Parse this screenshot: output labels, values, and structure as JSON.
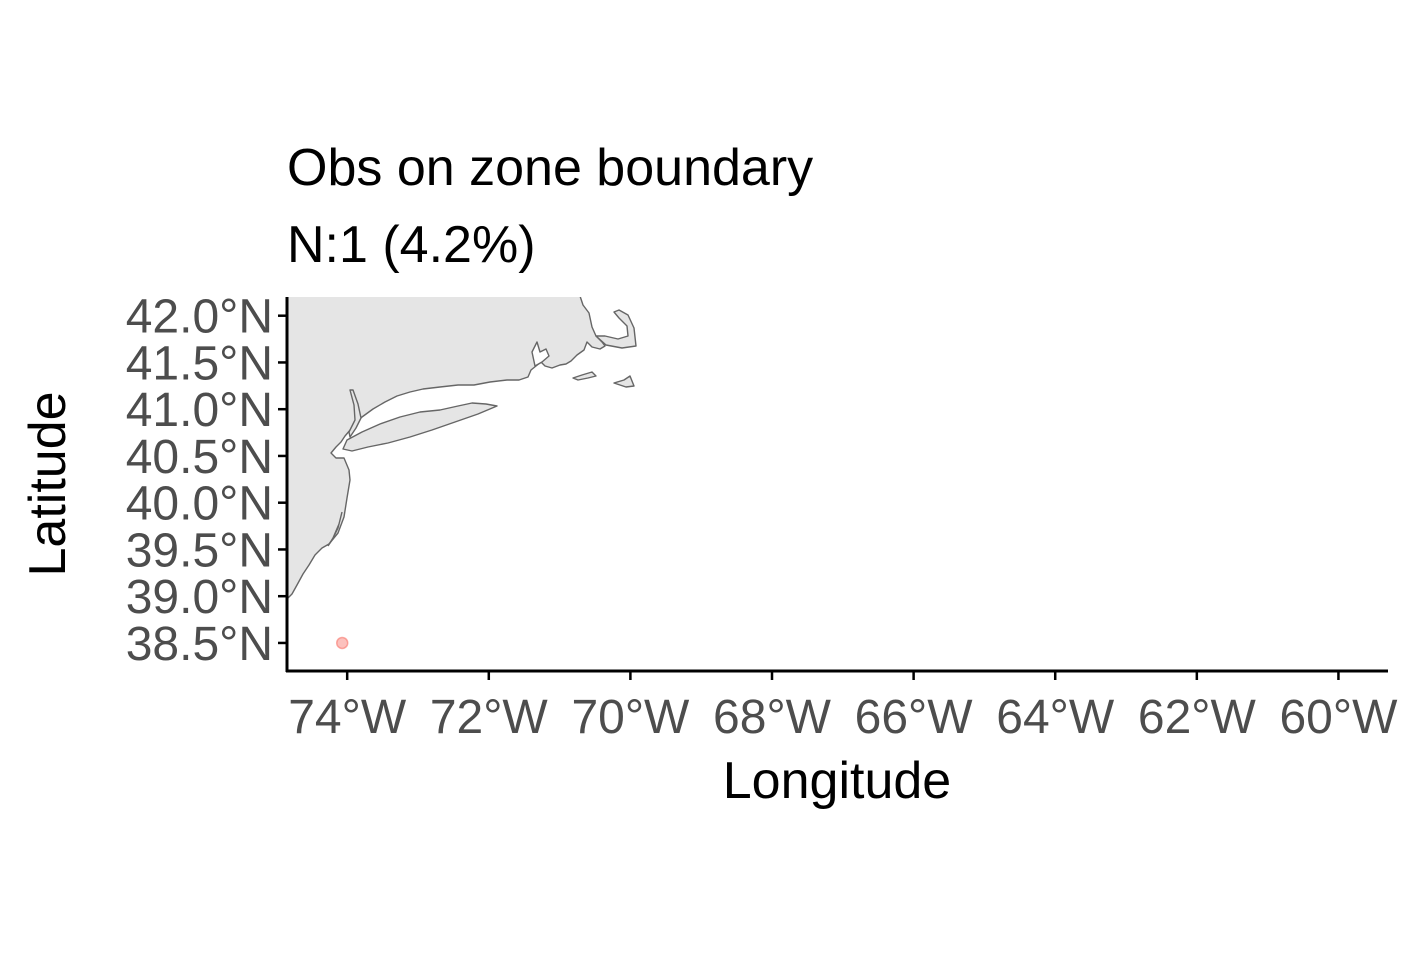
{
  "chart_data": {
    "type": "scatter",
    "title": "Obs on zone boundary",
    "subtitle": "N:1 (4.2%)",
    "xlabel": "Longitude",
    "ylabel": "Latitude",
    "x_ticks": [
      {
        "value": -74,
        "label": "74°W"
      },
      {
        "value": -72,
        "label": "72°W"
      },
      {
        "value": -70,
        "label": "70°W"
      },
      {
        "value": -68,
        "label": "68°W"
      },
      {
        "value": -66,
        "label": "66°W"
      },
      {
        "value": -64,
        "label": "64°W"
      },
      {
        "value": -62,
        "label": "62°W"
      },
      {
        "value": -60,
        "label": "60°W"
      }
    ],
    "y_ticks": [
      {
        "value": 42.0,
        "label": "42.0°N"
      },
      {
        "value": 41.5,
        "label": "41.5°N"
      },
      {
        "value": 41.0,
        "label": "41.0°N"
      },
      {
        "value": 40.5,
        "label": "40.5°N"
      },
      {
        "value": 40.0,
        "label": "40.0°N"
      },
      {
        "value": 39.5,
        "label": "39.5°N"
      },
      {
        "value": 39.0,
        "label": "39.0°N"
      },
      {
        "value": 38.5,
        "label": "38.5°N"
      }
    ],
    "xlim": [
      -74.85,
      -59.3
    ],
    "ylim": [
      38.2,
      42.2
    ],
    "grid": false,
    "points": [
      {
        "lon": -74.07,
        "lat": 38.5
      }
    ],
    "colors": {
      "land_fill": "#e5e5e5",
      "coastline": "#666666",
      "point": "#f8766d",
      "axis": "#000000",
      "tick_text": "#4d4d4d"
    }
  }
}
